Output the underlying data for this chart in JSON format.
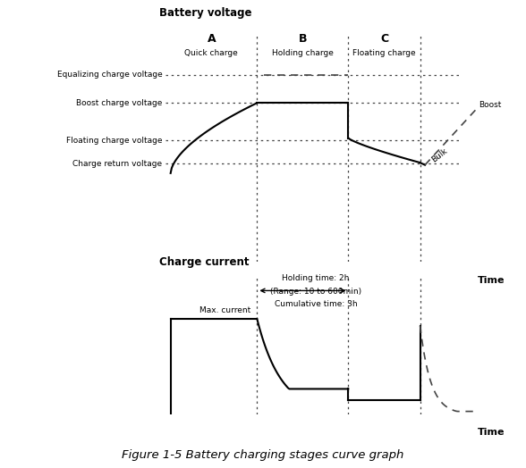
{
  "fig_width": 5.88,
  "fig_height": 5.24,
  "dpi": 100,
  "bg_color": "#ffffff",
  "line_color": "#000000",
  "dotted_color": "#444444",
  "top_ylabel": "Battery voltage",
  "bottom_ylabel": "Charge current",
  "xlabel": "Time",
  "caption": "Figure 1-5 Battery charging stages curve graph",
  "section_labels": [
    "A",
    "B",
    "C"
  ],
  "section_sublabels": [
    "Quick charge",
    "Holding charge",
    "Floating charge"
  ],
  "voltage_labels": [
    "Equalizing charge voltage",
    "Boost charge voltage",
    "Floating charge voltage",
    "Charge return voltage"
  ],
  "voltage_levels": [
    0.8,
    0.68,
    0.52,
    0.42
  ],
  "vline_x": [
    0.28,
    0.56,
    0.78
  ],
  "boost_label": "Boost",
  "bulk_label": "Bulk",
  "holding_time_label": "Holding time: 2h",
  "range_label": "(Range: 10 to 600min)",
  "cumulative_label": "Cumulative time: 3h",
  "max_current_label": "Max. current"
}
